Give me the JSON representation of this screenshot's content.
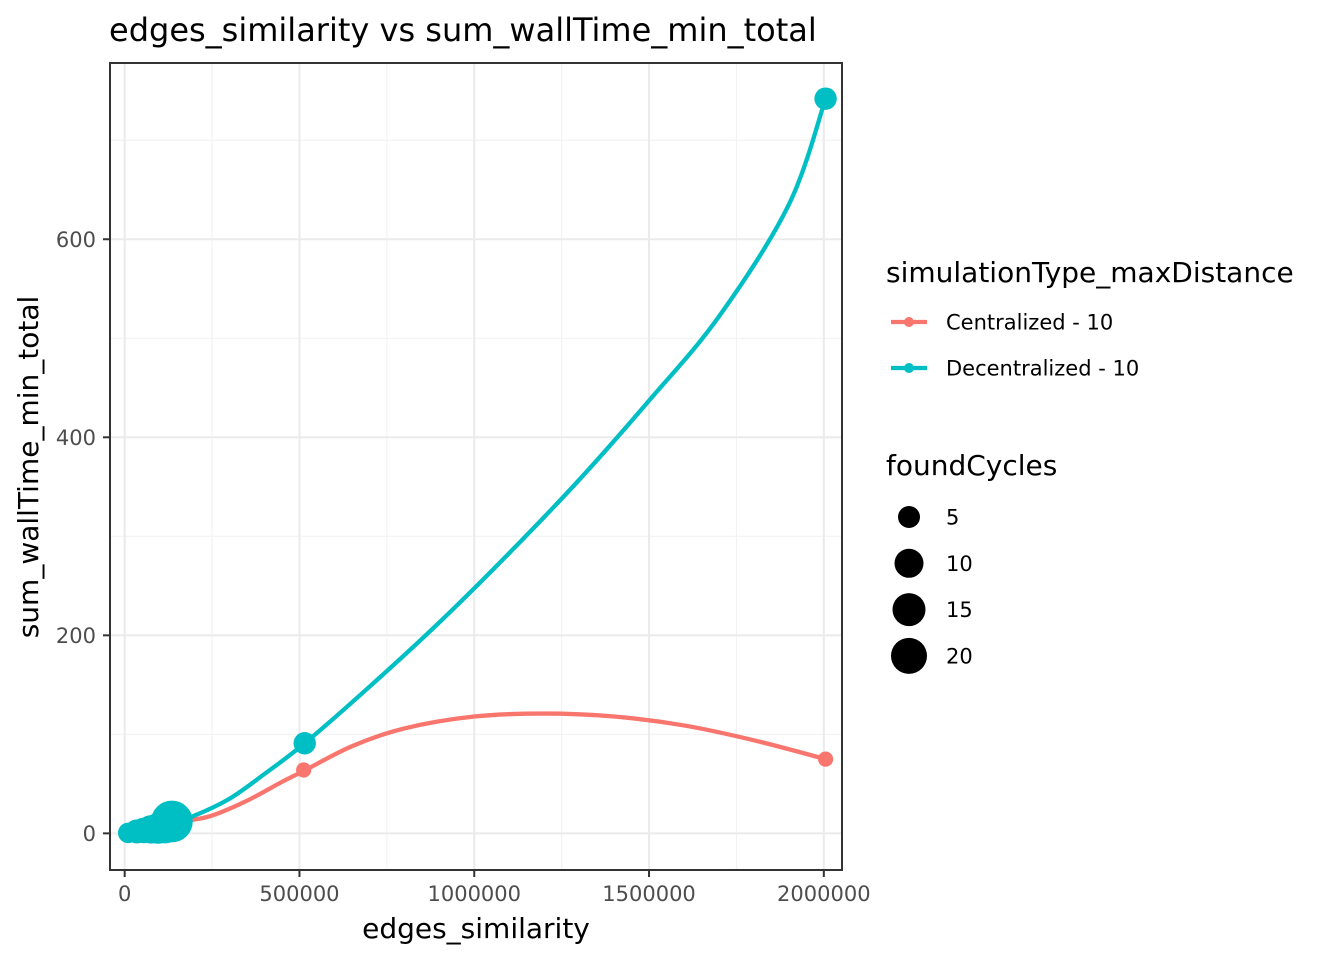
{
  "chart_data": {
    "type": "line",
    "title": "edges_similarity  vs  sum_wallTime_min_total",
    "xlabel": "edges_similarity",
    "ylabel": "sum_wallTime_min_total",
    "xlim": [
      -42000,
      2052000
    ],
    "ylim": [
      -37,
      778
    ],
    "x_ticks": [
      0,
      500000,
      1000000,
      1500000,
      2000000
    ],
    "x_tick_labels": [
      "0",
      "500000",
      "1000000",
      "1500000",
      "2000000"
    ],
    "y_ticks": [
      0,
      200,
      400,
      600
    ],
    "y_tick_labels": [
      "0",
      "200",
      "400",
      "600"
    ],
    "grid": true,
    "legend_position": "right",
    "color_legend": {
      "title": "simulationType_maxDistance",
      "entries": [
        {
          "label": "Centralized - 10",
          "color": "#F8766D"
        },
        {
          "label": "Decentralized - 10",
          "color": "#00BFC4"
        }
      ]
    },
    "size_legend": {
      "title": "foundCycles",
      "entries": [
        {
          "label": "5",
          "value": 5
        },
        {
          "label": "10",
          "value": 10
        },
        {
          "label": "15",
          "value": 15
        },
        {
          "label": "20",
          "value": 20
        }
      ]
    },
    "series": [
      {
        "name": "Centralized - 10",
        "color": "#F8766D",
        "points": [
          {
            "x": 10000,
            "y": 0.5,
            "size": 1
          },
          {
            "x": 35000,
            "y": 2,
            "size": 1
          },
          {
            "x": 60000,
            "y": 4,
            "size": 1
          },
          {
            "x": 90000,
            "y": 7,
            "size": 1
          },
          {
            "x": 115000,
            "y": 10,
            "size": 1
          },
          {
            "x": 135000,
            "y": 13,
            "size": 1
          },
          {
            "x": 512000,
            "y": 64,
            "size": 1
          },
          {
            "x": 2005000,
            "y": 75,
            "size": 1
          }
        ],
        "smooth": [
          [
            10000,
            0
          ],
          [
            60000,
            5
          ],
          [
            120000,
            11
          ],
          [
            180000,
            13
          ],
          [
            250000,
            18
          ],
          [
            350000,
            33
          ],
          [
            450000,
            52
          ],
          [
            512000,
            63
          ],
          [
            650000,
            88
          ],
          [
            800000,
            106
          ],
          [
            1000000,
            118
          ],
          [
            1200000,
            121
          ],
          [
            1400000,
            118
          ],
          [
            1600000,
            109
          ],
          [
            1800000,
            94
          ],
          [
            2005000,
            75
          ]
        ]
      },
      {
        "name": "Decentralized - 10",
        "color": "#00BFC4",
        "points": [
          {
            "x": 10000,
            "y": 0.5,
            "size": 3
          },
          {
            "x": 35000,
            "y": 2,
            "size": 5
          },
          {
            "x": 55000,
            "y": 3,
            "size": 6
          },
          {
            "x": 75000,
            "y": 4,
            "size": 8
          },
          {
            "x": 95000,
            "y": 5,
            "size": 10
          },
          {
            "x": 115000,
            "y": 7,
            "size": 13
          },
          {
            "x": 135000,
            "y": 12,
            "size": 22
          },
          {
            "x": 515000,
            "y": 91,
            "size": 4
          },
          {
            "x": 2005000,
            "y": 742,
            "size": 4
          }
        ],
        "smooth": [
          [
            10000,
            0
          ],
          [
            60000,
            4
          ],
          [
            120000,
            9
          ],
          [
            200000,
            18
          ],
          [
            300000,
            35
          ],
          [
            400000,
            60
          ],
          [
            515000,
            91
          ],
          [
            700000,
            148
          ],
          [
            900000,
            213
          ],
          [
            1100000,
            283
          ],
          [
            1300000,
            357
          ],
          [
            1500000,
            437
          ],
          [
            1700000,
            522
          ],
          [
            1900000,
            635
          ],
          [
            2005000,
            742
          ]
        ]
      }
    ]
  }
}
